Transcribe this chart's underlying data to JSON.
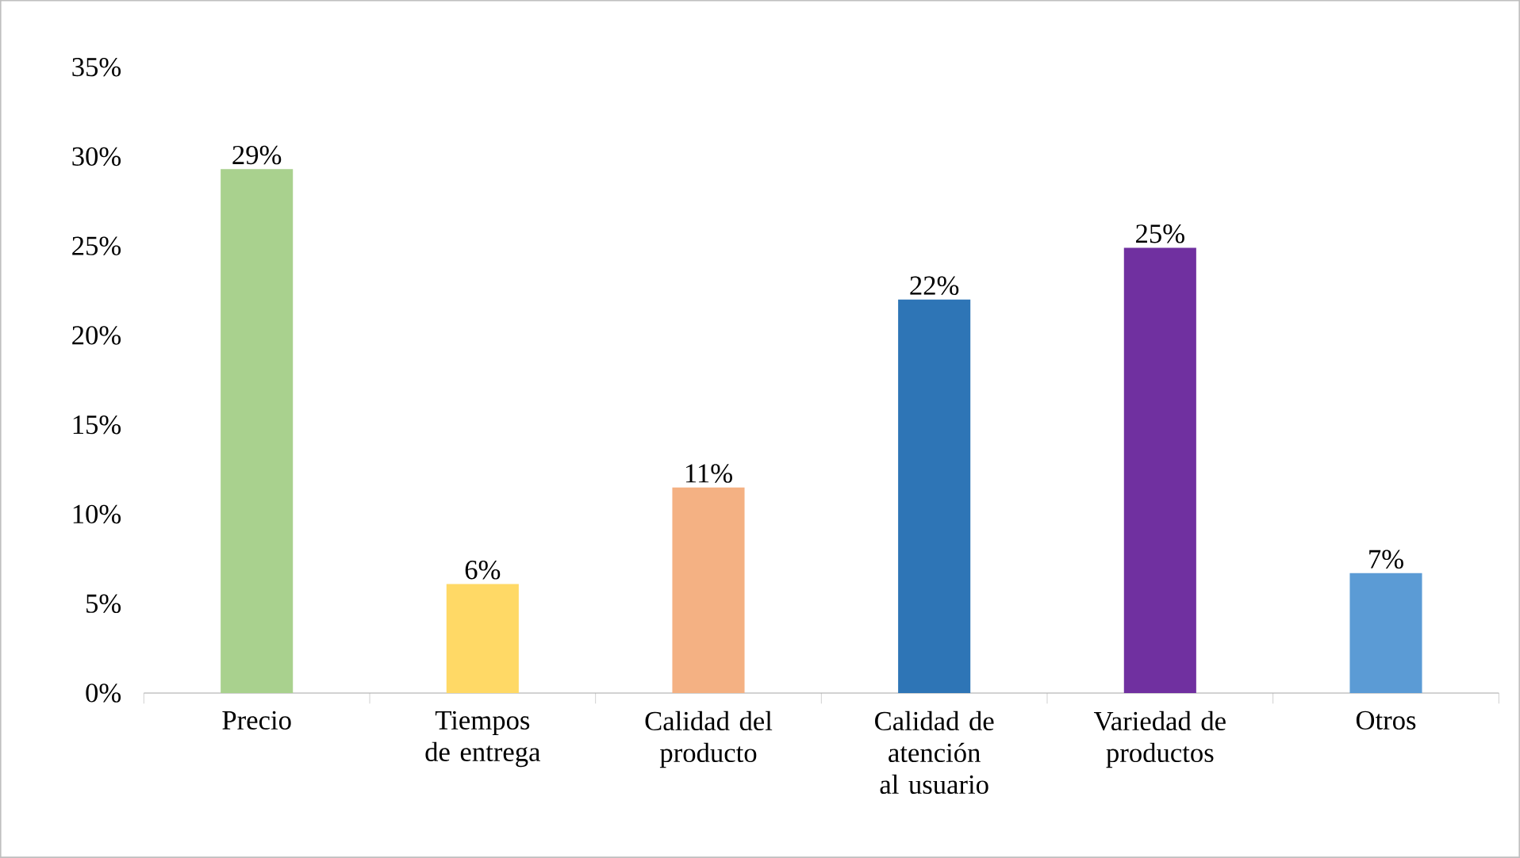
{
  "chart_data": {
    "type": "bar",
    "categories": [
      "Precio",
      "Tiempos de entrega",
      "Calidad del producto",
      "Calidad de atención al usuario",
      "Variedad de productos",
      "Otros"
    ],
    "values": [
      29.3,
      6.1,
      11.5,
      22.0,
      24.9,
      6.7
    ],
    "value_labels": [
      "29%",
      "6%",
      "11%",
      "22%",
      "25%",
      "7%"
    ],
    "colors": [
      "#a9d18e",
      "#ffd966",
      "#f4b183",
      "#2e75b6",
      "#7030a0",
      "#5b9bd5"
    ],
    "ylim": [
      0,
      35
    ],
    "yticks": [
      {
        "value": 0,
        "label": "0%"
      },
      {
        "value": 5,
        "label": "5%"
      },
      {
        "value": 10,
        "label": "10%"
      },
      {
        "value": 15,
        "label": "15%"
      },
      {
        "value": 20,
        "label": "20%"
      },
      {
        "value": 25,
        "label": "25%"
      },
      {
        "value": 30,
        "label": "30%"
      },
      {
        "value": 35,
        "label": "35%"
      }
    ],
    "ylabel": null
  }
}
